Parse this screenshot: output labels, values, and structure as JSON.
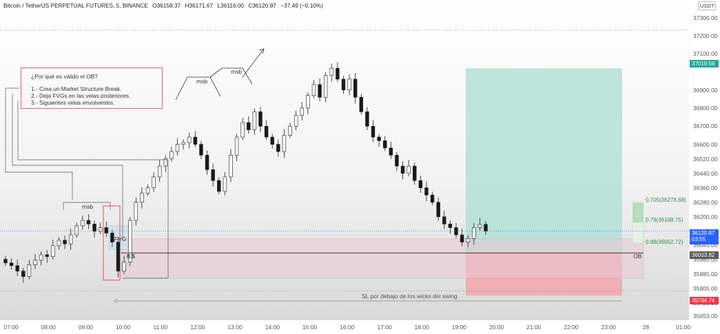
{
  "header": {
    "symbol": "Bitcoin / TetherUS PERPETUAL FUTURES, 5, BINANCE",
    "open": "O36158.37",
    "high": "H36171.67",
    "low": "L36116.00",
    "close": "C36120.87",
    "change": "−37.49 (−0.10%)"
  },
  "currency_label": "USDT",
  "price_axis": [
    "37300.00",
    "37200.00",
    "37100.00",
    "36900.00",
    "36800.00",
    "36700.00",
    "36600.00",
    "36520.00",
    "36440.00",
    "36360.00",
    "36280.00",
    "36200.00",
    "36045.00",
    "35965.00",
    "35885.00",
    "35805.00",
    "35725.00",
    "35653.00"
  ],
  "price_tags": {
    "target": "37019.59",
    "current": "36120.87",
    "countdown": "03:55",
    "ob": "36003.82",
    "stop": "35764.74"
  },
  "time_axis": [
    "07:00",
    "08:00",
    "09:00",
    "10:00",
    "11:00",
    "12:00",
    "13:00",
    "14:00",
    "15:00",
    "16:00",
    "17:00",
    "18:00",
    "19:00",
    "20:00",
    "21:00",
    "22:00",
    "23:00",
    "28",
    "01:00"
  ],
  "annotation": {
    "question": "¿Por qué es válido el OB?",
    "lines": [
      "1.- Crea un Market Structure Break.",
      "2.- Deja FVGs en las velas posteriores.",
      "3.- Siguientes velas envolventes."
    ]
  },
  "labels": {
    "msb_left": "msb",
    "msb_top1": "msb",
    "msb_top2": "msb",
    "fvg": "FVG",
    "half": "0.5",
    "ob": "OB",
    "sl_note": "SL por debajo de los wicks del swing"
  },
  "fib_levels": [
    "0.705(36278.68)",
    "0.79(36168.75)",
    "0.88(36052.72)"
  ],
  "colors": {
    "up": "#ffffff",
    "down": "#1a1a1a",
    "target_zone": "#b2e0d6",
    "stop_zone": "#f4a7b0",
    "ob_zone": "#e8c9d3",
    "current_price": "#2962ff",
    "target_tag": "#26a69a",
    "stop_tag": "#f23645",
    "ob_tag": "#5b5b5b"
  },
  "chart_data": {
    "type": "candlestick",
    "symbol": "Bitcoin / TetherUS PERPETUAL FUTURES",
    "timeframe": "5",
    "ylim": [
      35640,
      37340
    ],
    "closes": [
      35945,
      35930,
      35900,
      35870,
      35935,
      35960,
      35990,
      35980,
      36040,
      36070,
      36050,
      36100,
      36150,
      36180,
      36160,
      36120,
      36140,
      36110,
      36060,
      35900,
      35950,
      36180,
      36280,
      36330,
      36360,
      36420,
      36480,
      36520,
      36560,
      36600,
      36610,
      36640,
      36600,
      36540,
      36460,
      36400,
      36340,
      36420,
      36540,
      36640,
      36720,
      36680,
      36780,
      36700,
      36640,
      36600,
      36560,
      36650,
      36700,
      36760,
      36800,
      36870,
      36930,
      36860,
      36980,
      37020,
      36960,
      36900,
      36960,
      36860,
      36780,
      36700,
      36640,
      36620,
      36580,
      36540,
      36480,
      36440,
      36480,
      36400,
      36360,
      36320,
      36280,
      36200,
      36160,
      36140,
      36100,
      36060,
      36080,
      36140,
      36158,
      36121
    ]
  }
}
